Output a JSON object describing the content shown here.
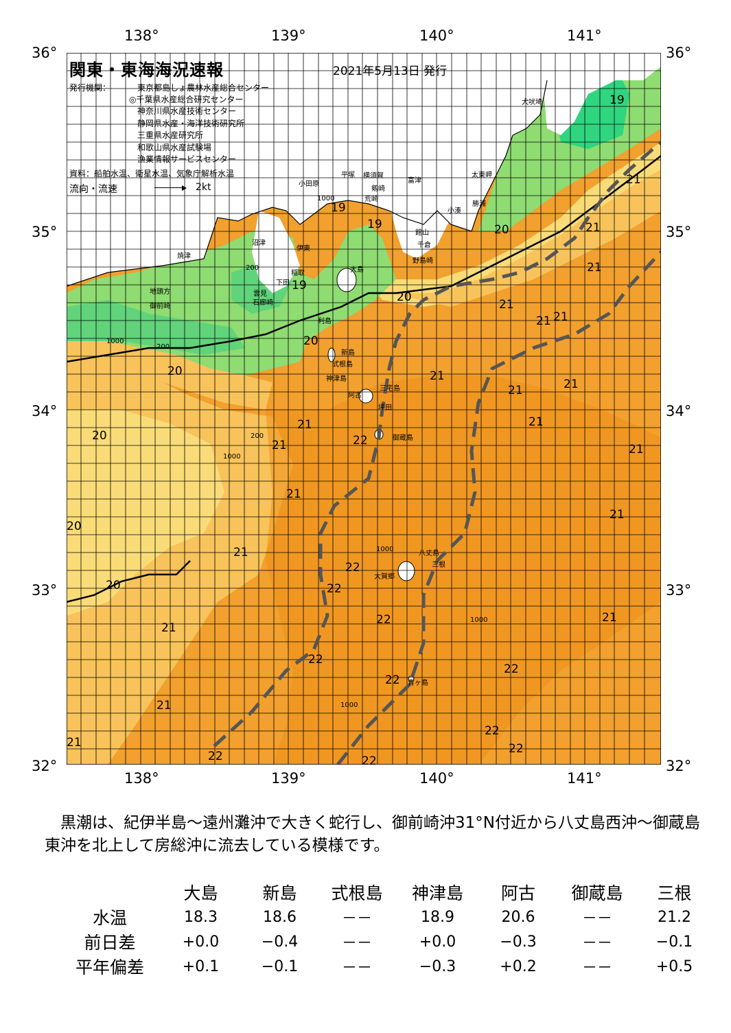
{
  "header": {
    "title": "関東・東海海況速報",
    "date": "2021年5月13日 発行",
    "issuer_label": "発行機関：",
    "issuers": [
      "東京都島しょ農林水産総合センター",
      "◎千葉県水産総合研究センター",
      "神奈川県水産技術センター",
      "静岡県水産・海洋技術研究所",
      "三重県水産研究所",
      "和歌山県水産試験場",
      "漁業情報サービスセンター"
    ],
    "source": "資料：船舶水温、衛星水温、気象庁解析水温",
    "current_label": "流向・流速",
    "current_scale": "2kt"
  },
  "axes": {
    "lon_labels": [
      "138°",
      "139°",
      "140°",
      "141°"
    ],
    "lat_labels": [
      "36°",
      "35°",
      "34°",
      "33°",
      "32°"
    ]
  },
  "map": {
    "colors": {
      "sea_warm": "#f2a02e",
      "sea_warmest": "#ef8f1a",
      "sea_mid": "#f7c35a",
      "sea_cool": "#f9dc78",
      "sea_pale": "#f4ee88",
      "sea_green": "#8edc72",
      "sea_cold": "#2fd57f",
      "land": "#ffffff",
      "kuroshio": "#555555"
    },
    "place_names": [
      "犬吠埼",
      "太東岬",
      "勝浦",
      "小湊",
      "富津",
      "館山",
      "千倉",
      "野島崎",
      "横須賀",
      "剱崎",
      "荒崎",
      "平塚",
      "小田原",
      "沼津",
      "伊東",
      "焼津",
      "地頭方",
      "御前崎",
      "稲取",
      "下田",
      "石廊崎",
      "雲見",
      "大島",
      "利島",
      "新島",
      "式根島",
      "神津島",
      "三宅島",
      "阿古",
      "坪田",
      "御蔵島",
      "八丈島",
      "大賀郷",
      "三根",
      "青ヶ島"
    ],
    "isotherm_labels": [
      "19",
      "19",
      "19",
      "19",
      "20",
      "20",
      "20",
      "20",
      "20",
      "20",
      "21",
      "21",
      "21",
      "21",
      "21",
      "21",
      "21",
      "21",
      "21",
      "21",
      "21",
      "21",
      "21",
      "21",
      "21",
      "21",
      "21",
      "21",
      "21",
      "21",
      "22",
      "22",
      "22",
      "22",
      "22",
      "22",
      "22",
      "22",
      "22",
      "22",
      "22",
      "20"
    ],
    "depth_labels": [
      "200",
      "200",
      "1000",
      "1000",
      "200",
      "1000",
      "1000",
      "1000",
      "1000"
    ]
  },
  "comment": "　黒潮は、紀伊半島～遠州灘沖で大きく蛇行し、御前崎沖31°N付近から八丈島西沖～御蔵島東沖を北上して房総沖に流去している模様です。",
  "table": {
    "stations": [
      "大島",
      "新島",
      "式根島",
      "神津島",
      "阿古",
      "御蔵島",
      "三根"
    ],
    "rows": [
      {
        "label": "水温",
        "values": [
          "18.3",
          "18.6",
          "－－",
          "18.9",
          "20.6",
          "－－",
          "21.2"
        ]
      },
      {
        "label": "前日差",
        "values": [
          "+0.0",
          "−0.4",
          "－－",
          "+0.0",
          "−0.3",
          "－－",
          "−0.1"
        ]
      },
      {
        "label": "平年偏差",
        "values": [
          "+0.1",
          "−0.1",
          "－－",
          "−0.3",
          "+0.2",
          "－－",
          "+0.5"
        ]
      }
    ]
  }
}
